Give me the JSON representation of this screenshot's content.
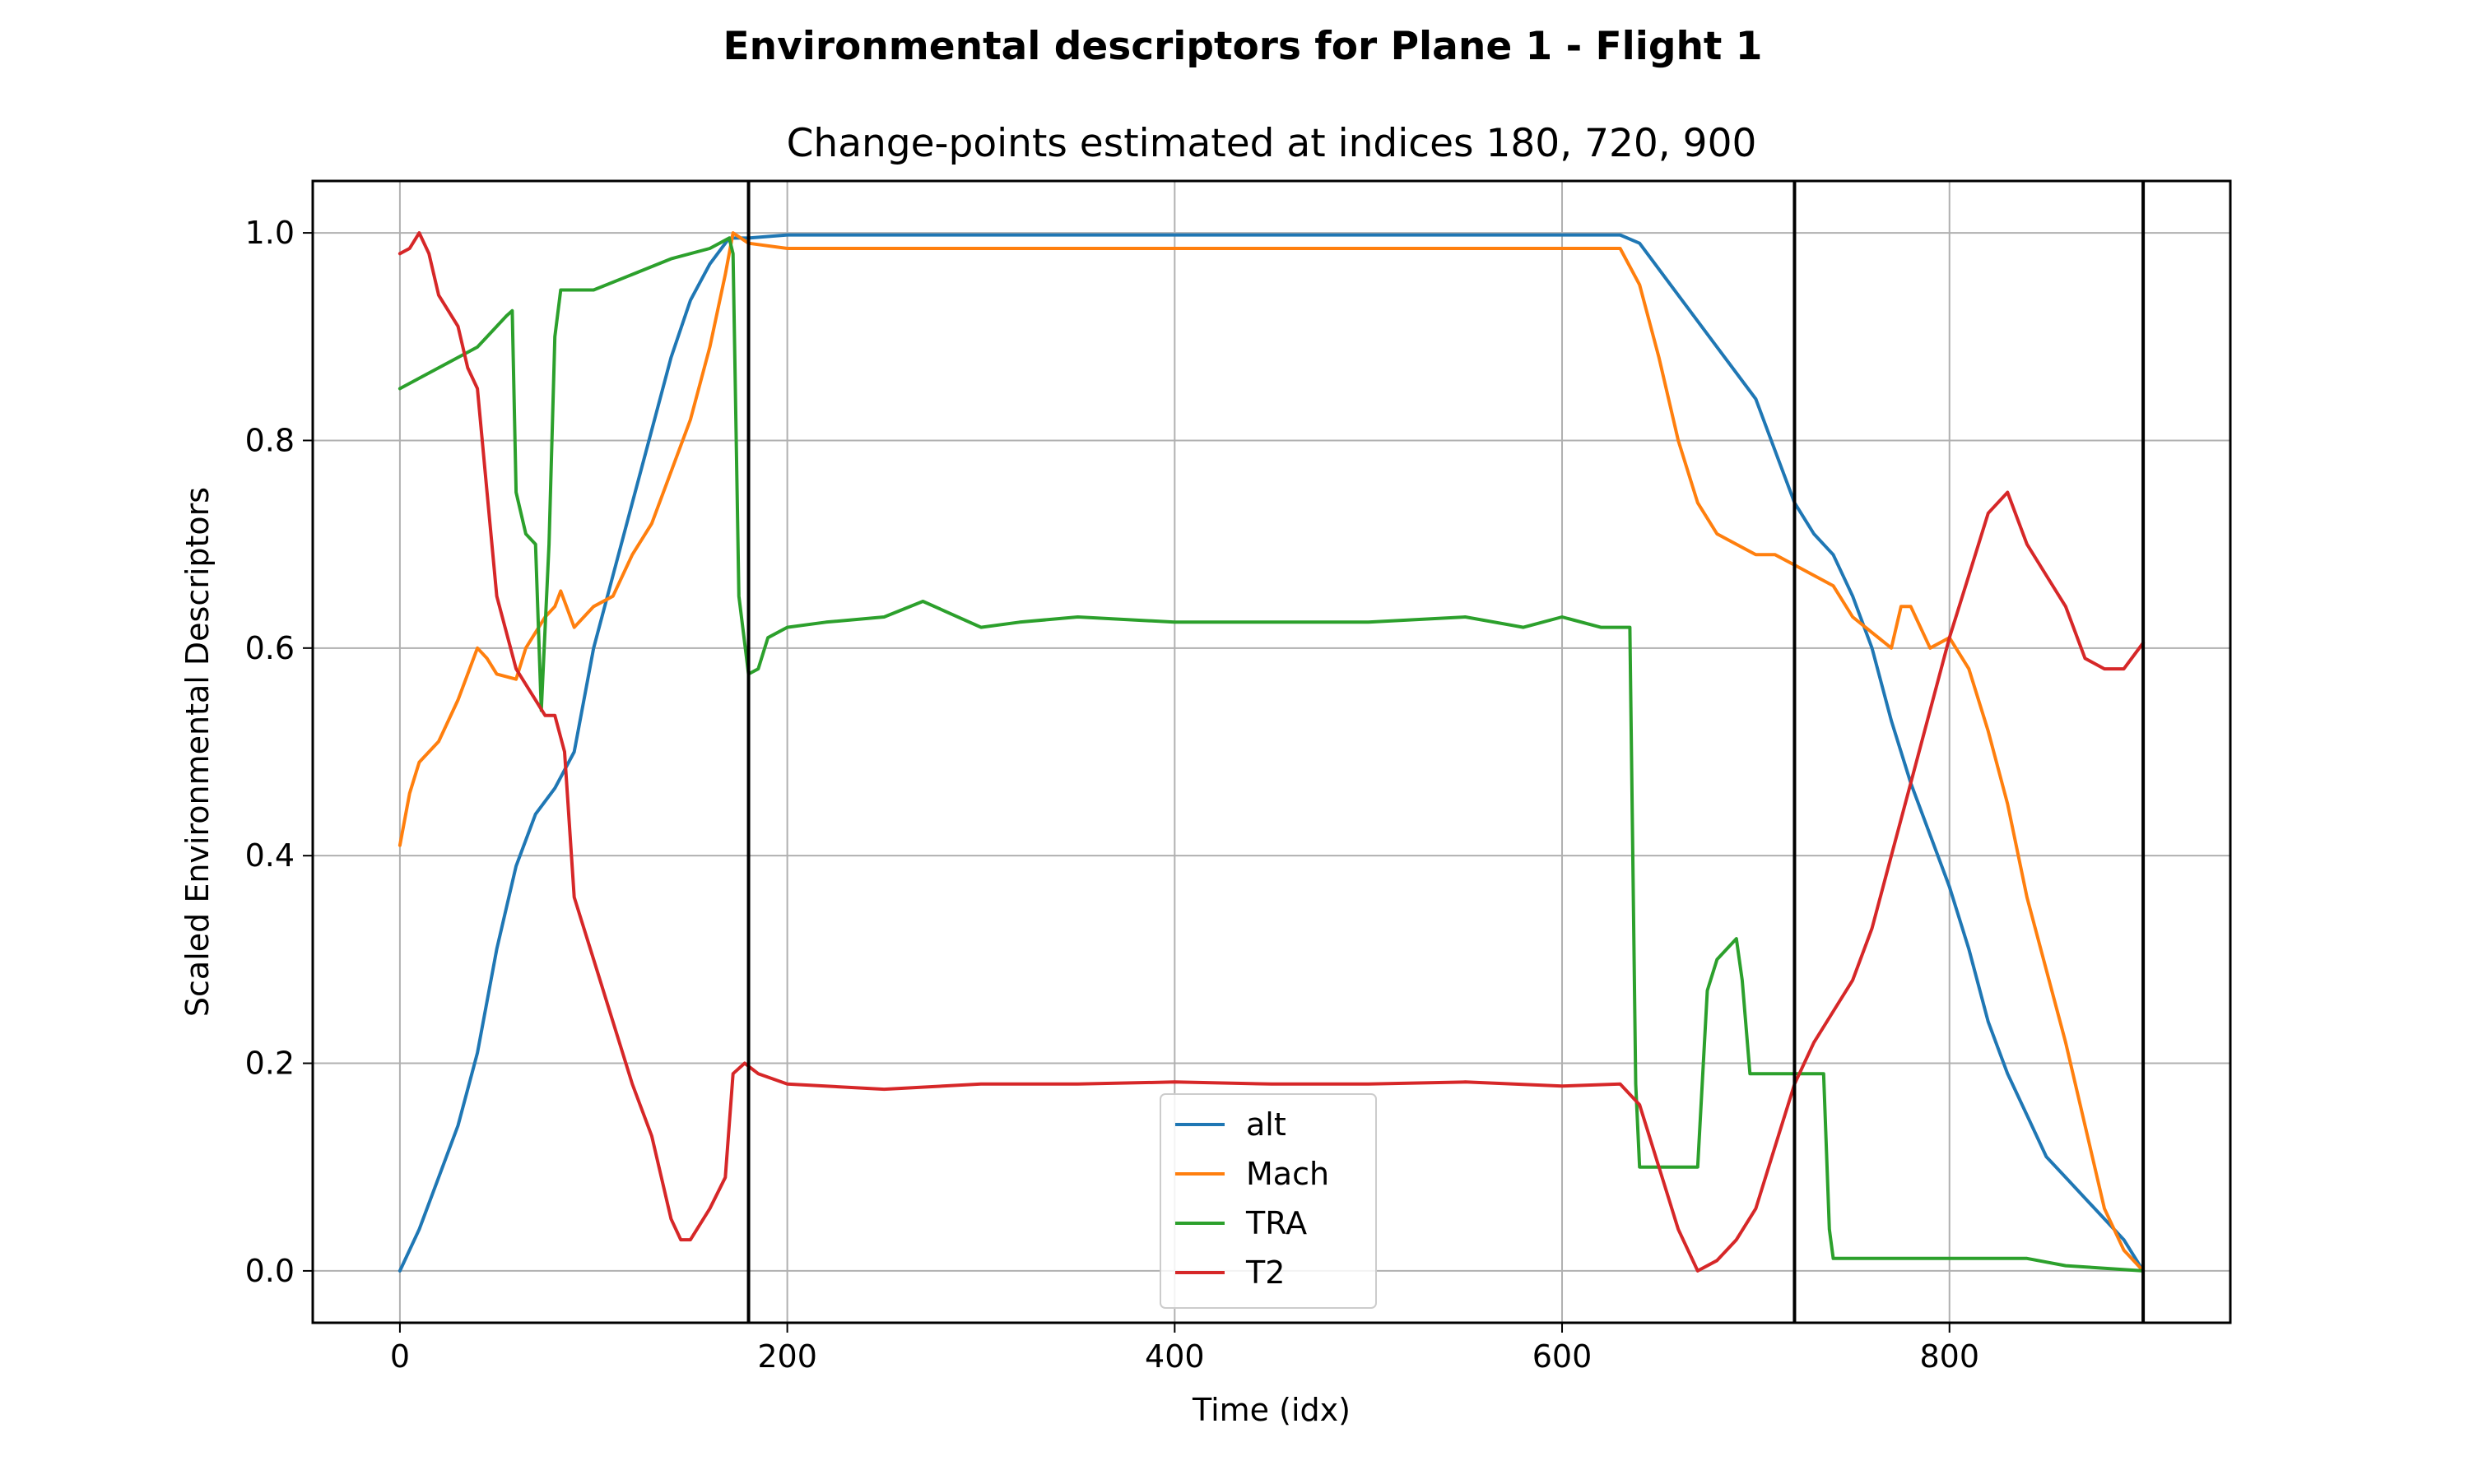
{
  "chart_data": {
    "type": "line",
    "title": "Environmental descriptors for Plane 1 - Flight 1",
    "subtitle": "Change-points estimated at indices 180, 720, 900",
    "xlabel": "Time (idx)",
    "ylabel": "Scaled Environmental Descriptors",
    "xlim": [
      -45,
      945
    ],
    "ylim": [
      -0.05,
      1.05
    ],
    "xticks": [
      0,
      200,
      400,
      600,
      800
    ],
    "xtick_labels": [
      "0",
      "200",
      "400",
      "600",
      "800"
    ],
    "yticks": [
      0.0,
      0.2,
      0.4,
      0.6,
      0.8,
      1.0
    ],
    "ytick_labels": [
      "0.0",
      "0.2",
      "0.4",
      "0.6",
      "0.8",
      "1.0"
    ],
    "grid": true,
    "legend_position": "lower center",
    "change_points": [
      180,
      720,
      900
    ],
    "series": [
      {
        "name": "alt",
        "color": "#1f77b4",
        "points": [
          [
            0,
            0.0
          ],
          [
            10,
            0.04
          ],
          [
            20,
            0.09
          ],
          [
            30,
            0.14
          ],
          [
            40,
            0.21
          ],
          [
            50,
            0.31
          ],
          [
            60,
            0.39
          ],
          [
            70,
            0.44
          ],
          [
            80,
            0.465
          ],
          [
            90,
            0.5
          ],
          [
            100,
            0.6
          ],
          [
            110,
            0.67
          ],
          [
            120,
            0.74
          ],
          [
            130,
            0.81
          ],
          [
            140,
            0.88
          ],
          [
            150,
            0.935
          ],
          [
            160,
            0.97
          ],
          [
            170,
            0.995
          ],
          [
            180,
            0.995
          ],
          [
            200,
            0.998
          ],
          [
            250,
            0.998
          ],
          [
            300,
            0.998
          ],
          [
            350,
            0.998
          ],
          [
            400,
            0.998
          ],
          [
            450,
            0.998
          ],
          [
            500,
            0.998
          ],
          [
            550,
            0.998
          ],
          [
            600,
            0.998
          ],
          [
            630,
            0.998
          ],
          [
            640,
            0.99
          ],
          [
            660,
            0.94
          ],
          [
            680,
            0.89
          ],
          [
            700,
            0.84
          ],
          [
            710,
            0.79
          ],
          [
            720,
            0.74
          ],
          [
            730,
            0.71
          ],
          [
            740,
            0.69
          ],
          [
            750,
            0.65
          ],
          [
            760,
            0.6
          ],
          [
            770,
            0.53
          ],
          [
            780,
            0.47
          ],
          [
            790,
            0.42
          ],
          [
            800,
            0.37
          ],
          [
            810,
            0.31
          ],
          [
            820,
            0.24
          ],
          [
            830,
            0.19
          ],
          [
            840,
            0.15
          ],
          [
            850,
            0.11
          ],
          [
            860,
            0.09
          ],
          [
            870,
            0.07
          ],
          [
            880,
            0.05
          ],
          [
            890,
            0.03
          ],
          [
            900,
            0.0
          ]
        ]
      },
      {
        "name": "Mach",
        "color": "#ff7f0e",
        "points": [
          [
            0,
            0.41
          ],
          [
            5,
            0.46
          ],
          [
            10,
            0.49
          ],
          [
            20,
            0.51
          ],
          [
            30,
            0.55
          ],
          [
            40,
            0.6
          ],
          [
            45,
            0.59
          ],
          [
            50,
            0.575
          ],
          [
            60,
            0.57
          ],
          [
            65,
            0.6
          ],
          [
            75,
            0.63
          ],
          [
            80,
            0.64
          ],
          [
            83,
            0.655
          ],
          [
            90,
            0.62
          ],
          [
            100,
            0.64
          ],
          [
            110,
            0.65
          ],
          [
            120,
            0.69
          ],
          [
            130,
            0.72
          ],
          [
            140,
            0.77
          ],
          [
            150,
            0.82
          ],
          [
            160,
            0.89
          ],
          [
            168,
            0.96
          ],
          [
            172,
            1.0
          ],
          [
            180,
            0.99
          ],
          [
            200,
            0.985
          ],
          [
            250,
            0.985
          ],
          [
            300,
            0.985
          ],
          [
            350,
            0.985
          ],
          [
            400,
            0.985
          ],
          [
            450,
            0.985
          ],
          [
            500,
            0.985
          ],
          [
            550,
            0.985
          ],
          [
            600,
            0.985
          ],
          [
            630,
            0.985
          ],
          [
            640,
            0.95
          ],
          [
            650,
            0.88
          ],
          [
            660,
            0.8
          ],
          [
            670,
            0.74
          ],
          [
            680,
            0.71
          ],
          [
            690,
            0.7
          ],
          [
            700,
            0.69
          ],
          [
            710,
            0.69
          ],
          [
            720,
            0.68
          ],
          [
            730,
            0.67
          ],
          [
            740,
            0.66
          ],
          [
            750,
            0.63
          ],
          [
            760,
            0.615
          ],
          [
            770,
            0.6
          ],
          [
            775,
            0.64
          ],
          [
            780,
            0.64
          ],
          [
            790,
            0.6
          ],
          [
            800,
            0.61
          ],
          [
            810,
            0.58
          ],
          [
            820,
            0.52
          ],
          [
            830,
            0.45
          ],
          [
            840,
            0.36
          ],
          [
            850,
            0.29
          ],
          [
            860,
            0.22
          ],
          [
            870,
            0.14
          ],
          [
            880,
            0.06
          ],
          [
            890,
            0.02
          ],
          [
            900,
            0.0
          ]
        ]
      },
      {
        "name": "TRA",
        "color": "#2ca02c",
        "points": [
          [
            0,
            0.85
          ],
          [
            20,
            0.87
          ],
          [
            40,
            0.89
          ],
          [
            55,
            0.92
          ],
          [
            58,
            0.925
          ],
          [
            60,
            0.75
          ],
          [
            65,
            0.71
          ],
          [
            70,
            0.7
          ],
          [
            73,
            0.54
          ],
          [
            77,
            0.7
          ],
          [
            80,
            0.9
          ],
          [
            83,
            0.945
          ],
          [
            100,
            0.945
          ],
          [
            120,
            0.96
          ],
          [
            140,
            0.975
          ],
          [
            160,
            0.985
          ],
          [
            170,
            0.995
          ],
          [
            172,
            0.98
          ],
          [
            175,
            0.65
          ],
          [
            180,
            0.575
          ],
          [
            185,
            0.58
          ],
          [
            190,
            0.61
          ],
          [
            200,
            0.62
          ],
          [
            220,
            0.625
          ],
          [
            250,
            0.63
          ],
          [
            270,
            0.645
          ],
          [
            300,
            0.62
          ],
          [
            320,
            0.625
          ],
          [
            350,
            0.63
          ],
          [
            400,
            0.625
          ],
          [
            450,
            0.625
          ],
          [
            500,
            0.625
          ],
          [
            550,
            0.63
          ],
          [
            580,
            0.62
          ],
          [
            600,
            0.63
          ],
          [
            620,
            0.62
          ],
          [
            635,
            0.62
          ],
          [
            638,
            0.18
          ],
          [
            640,
            0.1
          ],
          [
            670,
            0.1
          ],
          [
            675,
            0.27
          ],
          [
            680,
            0.3
          ],
          [
            690,
            0.32
          ],
          [
            693,
            0.28
          ],
          [
            697,
            0.19
          ],
          [
            720,
            0.19
          ],
          [
            735,
            0.19
          ],
          [
            738,
            0.04
          ],
          [
            740,
            0.012
          ],
          [
            800,
            0.012
          ],
          [
            840,
            0.012
          ],
          [
            860,
            0.005
          ],
          [
            900,
            0.0
          ]
        ]
      },
      {
        "name": "T2",
        "color": "#d62728",
        "points": [
          [
            0,
            0.98
          ],
          [
            5,
            0.985
          ],
          [
            10,
            1.0
          ],
          [
            15,
            0.98
          ],
          [
            20,
            0.94
          ],
          [
            30,
            0.91
          ],
          [
            35,
            0.87
          ],
          [
            40,
            0.85
          ],
          [
            45,
            0.75
          ],
          [
            50,
            0.65
          ],
          [
            60,
            0.58
          ],
          [
            70,
            0.55
          ],
          [
            75,
            0.535
          ],
          [
            80,
            0.535
          ],
          [
            85,
            0.5
          ],
          [
            90,
            0.36
          ],
          [
            100,
            0.3
          ],
          [
            110,
            0.24
          ],
          [
            120,
            0.18
          ],
          [
            130,
            0.13
          ],
          [
            140,
            0.05
          ],
          [
            145,
            0.03
          ],
          [
            150,
            0.03
          ],
          [
            160,
            0.06
          ],
          [
            168,
            0.09
          ],
          [
            172,
            0.19
          ],
          [
            178,
            0.2
          ],
          [
            185,
            0.19
          ],
          [
            200,
            0.18
          ],
          [
            250,
            0.175
          ],
          [
            300,
            0.18
          ],
          [
            350,
            0.18
          ],
          [
            400,
            0.182
          ],
          [
            450,
            0.18
          ],
          [
            500,
            0.18
          ],
          [
            550,
            0.182
          ],
          [
            600,
            0.178
          ],
          [
            630,
            0.18
          ],
          [
            640,
            0.16
          ],
          [
            650,
            0.1
          ],
          [
            660,
            0.04
          ],
          [
            670,
            0.0
          ],
          [
            680,
            0.01
          ],
          [
            690,
            0.03
          ],
          [
            700,
            0.06
          ],
          [
            710,
            0.12
          ],
          [
            720,
            0.18
          ],
          [
            730,
            0.22
          ],
          [
            740,
            0.25
          ],
          [
            750,
            0.28
          ],
          [
            760,
            0.33
          ],
          [
            770,
            0.4
          ],
          [
            780,
            0.47
          ],
          [
            790,
            0.54
          ],
          [
            800,
            0.61
          ],
          [
            810,
            0.67
          ],
          [
            820,
            0.73
          ],
          [
            830,
            0.75
          ],
          [
            840,
            0.7
          ],
          [
            850,
            0.67
          ],
          [
            860,
            0.64
          ],
          [
            870,
            0.59
          ],
          [
            880,
            0.58
          ],
          [
            890,
            0.58
          ],
          [
            900,
            0.605
          ]
        ]
      }
    ]
  }
}
